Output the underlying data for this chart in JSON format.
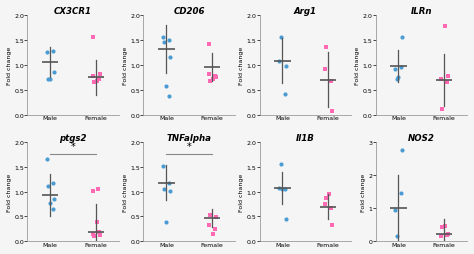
{
  "panels": [
    {
      "title": "CX3CR1",
      "ylim": [
        0.0,
        2.0
      ],
      "yticks": [
        0.0,
        0.5,
        1.0,
        1.5,
        2.0
      ],
      "male_points": [
        1.25,
        1.28,
        0.72,
        0.85,
        0.72
      ],
      "female_points": [
        0.72,
        0.78,
        0.82,
        0.65,
        0.68,
        1.55
      ],
      "male_mean": 1.05,
      "male_sd": 0.3,
      "female_mean": 0.75,
      "female_sd": 0.35,
      "significance": null,
      "row": 0,
      "col": 0
    },
    {
      "title": "CD206",
      "ylim": [
        0.0,
        2.0
      ],
      "yticks": [
        0.0,
        0.5,
        1.0,
        1.5,
        2.0
      ],
      "male_points": [
        1.55,
        1.5,
        1.45,
        1.15,
        0.58,
        0.38
      ],
      "female_points": [
        0.78,
        0.82,
        0.75,
        0.68,
        0.72,
        1.42
      ],
      "male_mean": 1.32,
      "male_sd": 0.48,
      "female_mean": 0.95,
      "female_sd": 0.28,
      "significance": null,
      "row": 0,
      "col": 1
    },
    {
      "title": "Arg1",
      "ylim": [
        0.0,
        2.0
      ],
      "yticks": [
        0.0,
        0.5,
        1.0,
        1.5,
        2.0
      ],
      "male_points": [
        1.08,
        0.42,
        1.55,
        0.98
      ],
      "female_points": [
        0.68,
        0.92,
        0.08,
        1.35
      ],
      "male_mean": 1.08,
      "male_sd": 0.45,
      "female_mean": 0.7,
      "female_sd": 0.55,
      "significance": null,
      "row": 0,
      "col": 2
    },
    {
      "title": "ILRn",
      "ylim": [
        0.0,
        2.0
      ],
      "yticks": [
        0.0,
        0.5,
        1.0,
        1.5,
        2.0
      ],
      "male_points": [
        0.92,
        0.95,
        0.72,
        1.55,
        0.75
      ],
      "female_points": [
        0.65,
        0.72,
        0.78,
        0.12,
        1.78
      ],
      "male_mean": 0.98,
      "male_sd": 0.32,
      "female_mean": 0.7,
      "female_sd": 0.52,
      "significance": null,
      "row": 0,
      "col": 3
    },
    {
      "title": "ptgs2",
      "ylim": [
        0.0,
        2.0
      ],
      "yticks": [
        0.0,
        0.5,
        1.0,
        1.5,
        2.0
      ],
      "male_points": [
        1.65,
        1.18,
        1.12,
        0.85,
        0.78,
        0.65
      ],
      "female_points": [
        0.18,
        0.15,
        0.12,
        0.1,
        0.38,
        1.02,
        1.05
      ],
      "male_mean": 0.93,
      "male_sd": 0.42,
      "female_mean": 0.18,
      "female_sd": 0.58,
      "significance": "*",
      "row": 1,
      "col": 0
    },
    {
      "title": "TNFalpha",
      "ylim": [
        0.0,
        2.0
      ],
      "yticks": [
        0.0,
        0.5,
        1.0,
        1.5,
        2.0
      ],
      "male_points": [
        1.52,
        1.18,
        1.05,
        1.02,
        0.38
      ],
      "female_points": [
        0.25,
        0.32,
        0.48,
        0.52,
        0.15
      ],
      "male_mean": 1.18,
      "male_sd": 0.35,
      "female_mean": 0.47,
      "female_sd": 0.18,
      "significance": "*",
      "row": 1,
      "col": 1
    },
    {
      "title": "Il1B",
      "ylim": [
        0.0,
        2.0
      ],
      "yticks": [
        0.0,
        0.5,
        1.0,
        1.5,
        2.0
      ],
      "male_points": [
        1.08,
        1.05,
        1.55,
        0.45,
        1.05
      ],
      "female_points": [
        0.68,
        0.75,
        0.32,
        0.88,
        0.95
      ],
      "male_mean": 1.08,
      "male_sd": 0.32,
      "female_mean": 0.7,
      "female_sd": 0.25,
      "significance": null,
      "row": 1,
      "col": 2
    },
    {
      "title": "NOS2",
      "ylim": [
        0,
        3
      ],
      "yticks": [
        0,
        1,
        2,
        3
      ],
      "male_points": [
        0.95,
        1.45,
        0.15,
        2.75
      ],
      "female_points": [
        0.18,
        0.15,
        0.22,
        0.42,
        0.45
      ],
      "male_mean": 1.0,
      "male_sd": 1.0,
      "female_mean": 0.22,
      "female_sd": 0.45,
      "significance": null,
      "row": 1,
      "col": 3
    }
  ],
  "blue_color": "#4B9CD3",
  "pink_color": "#FF69B4",
  "errorbar_color": "#555555",
  "sig_line_color": "#888888",
  "xlabel_male": "Male",
  "xlabel_female": "Female",
  "ylabel": "Fold change",
  "background_color": "#f5f5f5",
  "male_jitters": [
    -0.07,
    0.06,
    -0.04,
    0.08,
    0.0,
    0.05
  ],
  "female_jitters": [
    0.06,
    -0.06,
    0.08,
    -0.04,
    0.02,
    -0.07,
    0.04
  ]
}
